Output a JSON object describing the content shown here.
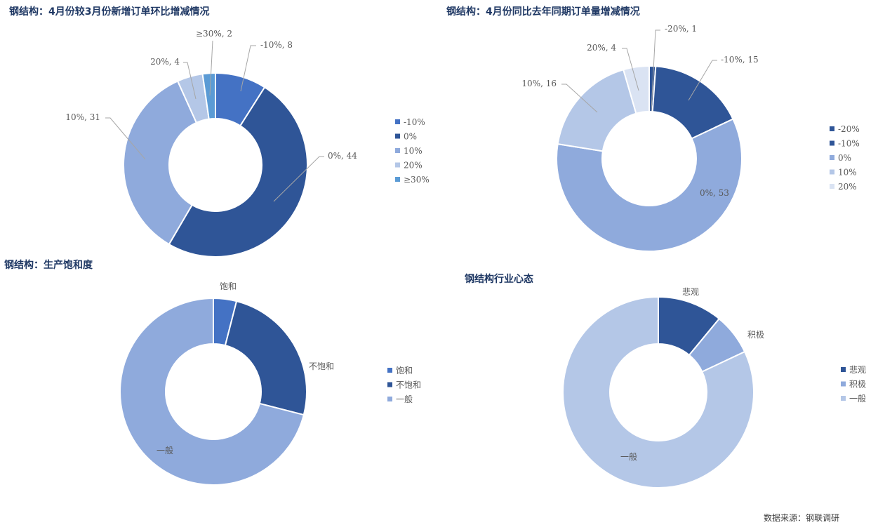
{
  "chart_data": [
    {
      "type": "donut",
      "title": "钢结构：4月份较3月份新增订单环比增减情况",
      "categories": [
        "-10%",
        "0%",
        "10%",
        "20%",
        "≥30%"
      ],
      "values": [
        8,
        44,
        31,
        4,
        2
      ],
      "data_labels": [
        "-10%, 8",
        "0%, 44",
        "10%, 31",
        "20%, 4",
        "≥30%, 2"
      ],
      "colors": [
        "#4472c4",
        "#2f5597",
        "#8faadc",
        "#b4c7e7",
        "#5b9bd5"
      ],
      "legend": "right"
    },
    {
      "type": "donut",
      "title": "钢结构：4月份同比去年同期订单量增减情况",
      "categories": [
        "-20%",
        "-10%",
        "0%",
        "10%",
        "20%"
      ],
      "values": [
        1,
        15,
        53,
        16,
        4
      ],
      "data_labels": [
        "-20%, 1",
        "-10%, 15",
        "0%, 53",
        "10%, 16",
        "20%, 4"
      ],
      "colors": [
        "#2f5597",
        "#2f5597",
        "#8faadc",
        "#b4c7e7",
        "#dae3f3"
      ],
      "legend": "right"
    },
    {
      "type": "donut",
      "title": "钢结构：生产饱和度",
      "categories": [
        "饱和",
        "不饱和",
        "一般"
      ],
      "values": [
        4,
        25,
        71
      ],
      "data_labels": [
        "饱和",
        "不饱和",
        "一般"
      ],
      "colors": [
        "#4472c4",
        "#2f5597",
        "#8faadc"
      ],
      "legend": "right"
    },
    {
      "type": "donut",
      "title": "钢结构行业心态",
      "categories": [
        "悲观",
        "积极",
        "一般"
      ],
      "values": [
        11,
        7,
        82
      ],
      "data_labels": [
        "悲观",
        "积极",
        "一般"
      ],
      "colors": [
        "#2f5597",
        "#8faadc",
        "#b4c7e7"
      ],
      "legend": "right"
    }
  ],
  "source": "数据来源：钢联调研"
}
